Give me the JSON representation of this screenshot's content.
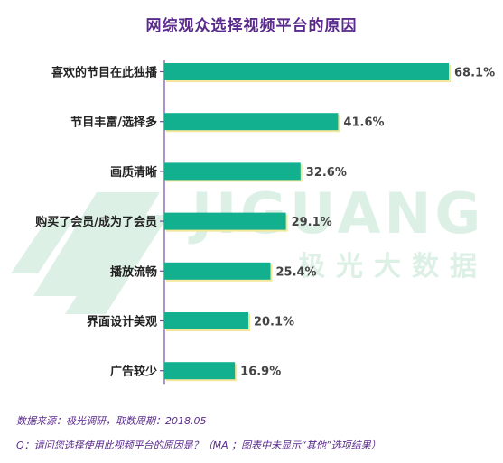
{
  "chart_data": {
    "type": "bar",
    "orientation": "horizontal",
    "title": "网综观众选择视频平台的原因",
    "categories": [
      "喜欢的节目在此独播",
      "节目丰富/选择多",
      "画质清晰",
      "购买了会员/成为了会员",
      "播放流畅",
      "界面设计美观",
      "广告较少"
    ],
    "values": [
      68.1,
      41.6,
      32.6,
      29.1,
      25.4,
      20.1,
      16.9
    ],
    "value_labels": [
      "68.1%",
      "41.6%",
      "32.6%",
      "29.1%",
      "25.4%",
      "20.1%",
      "16.9%"
    ],
    "unit": "%",
    "xlim": [
      0,
      68.1
    ],
    "bar_color": "#12b08e",
    "grid": false
  },
  "watermark": {
    "brand": "JIGUANG",
    "sub": "极光大数据"
  },
  "footnotes": {
    "source": "数据来源：极光调研，取数周期：2018.05",
    "question": "Q：请问您选择使用此视频平台的原因是？（MA ；图表中未显示“其他”选项结果）"
  },
  "colors": {
    "title": "#5a2a8c",
    "axis": "#7a4aa8",
    "label": "#222222"
  }
}
